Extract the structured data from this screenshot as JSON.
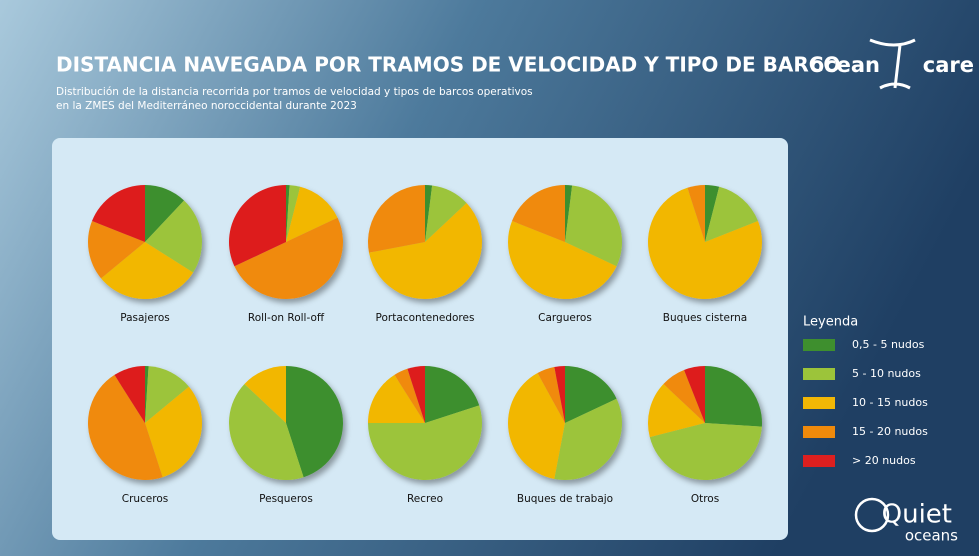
{
  "header": {
    "title": "DISTANCIA NAVEGADA POR TRAMOS DE VELOCIDAD Y TIPO DE BARCO",
    "subtitle": [
      "Distribución de la distancia recorrida por tramos de velocidad y tipos de barcos operativos",
      "en la ZMES del Mediterráneo noroccidental durante 2023"
    ],
    "logo_top": [
      "ocean",
      "care"
    ],
    "logo_bottom": [
      "Quiet",
      "oceans"
    ]
  },
  "legend": {
    "title": "Leyenda",
    "categories": [
      "0,5 - 5 nudos",
      "5 - 10 nudos",
      "10 - 15 nudos",
      "15 - 20 nudos",
      "> 20 nudos"
    ],
    "colors": [
      "#3e8f2e",
      "#9cc43a",
      "#f2b705",
      "#f08a0b",
      "#dd1f1f"
    ]
  },
  "chart_data": [
    {
      "type": "pie",
      "title": "Pasajeros",
      "values": [
        12,
        22,
        30,
        17,
        19
      ]
    },
    {
      "type": "pie",
      "title": "Roll-on Roll-off",
      "values": [
        1,
        3,
        14,
        50,
        32
      ]
    },
    {
      "type": "pie",
      "title": "Portacontenedores",
      "values": [
        2,
        11,
        59,
        28,
        0
      ]
    },
    {
      "type": "pie",
      "title": "Cargueros",
      "values": [
        2,
        30,
        49,
        19,
        0
      ]
    },
    {
      "type": "pie",
      "title": "Buques cisterna",
      "values": [
        4,
        15,
        76,
        5,
        0
      ]
    },
    {
      "type": "pie",
      "title": "Cruceros",
      "values": [
        1,
        13,
        31,
        46,
        9
      ]
    },
    {
      "type": "pie",
      "title": "Pesqueros",
      "values": [
        45,
        42,
        13,
        0,
        0
      ]
    },
    {
      "type": "pie",
      "title": "Recreo",
      "values": [
        20,
        55,
        16,
        4,
        5
      ]
    },
    {
      "type": "pie",
      "title": "Buques de trabajo",
      "values": [
        18,
        35,
        39,
        5,
        3
      ]
    },
    {
      "type": "pie",
      "title": "Otros",
      "values": [
        26,
        45,
        16,
        7,
        6
      ]
    }
  ]
}
